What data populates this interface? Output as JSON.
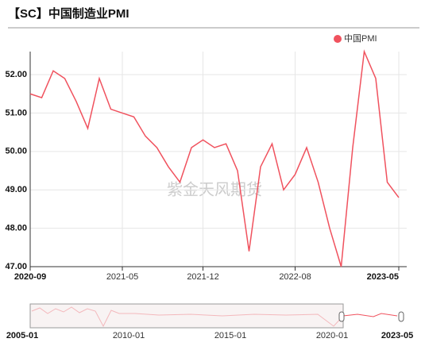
{
  "chart_data": {
    "type": "line",
    "title": "【SC】中国制造业PMI",
    "watermark": "紫金天风期货",
    "categories": [
      "2020-09",
      null,
      null,
      null,
      null,
      null,
      null,
      null,
      "2021-05",
      null,
      null,
      null,
      null,
      null,
      null,
      "2021-12",
      null,
      null,
      null,
      null,
      null,
      null,
      null,
      "2022-08",
      null,
      null,
      null,
      null,
      null,
      null,
      null,
      null,
      "2023-05"
    ],
    "series": [
      {
        "name": "中国PMI",
        "color": "#f0525e",
        "values": [
          51.5,
          51.4,
          52.1,
          51.9,
          51.3,
          50.6,
          51.9,
          51.1,
          51.0,
          50.9,
          50.4,
          50.1,
          49.6,
          49.2,
          50.1,
          50.3,
          50.1,
          50.2,
          49.5,
          47.4,
          49.6,
          50.2,
          49.0,
          49.4,
          50.1,
          49.2,
          48.0,
          47.0,
          50.1,
          52.6,
          51.9,
          49.2,
          48.8
        ]
      }
    ],
    "ylim": [
      47,
      52.6
    ],
    "yticks": [
      {
        "value": 47,
        "label": "47.00"
      },
      {
        "value": 48,
        "label": "48.00"
      },
      {
        "value": 49,
        "label": "49.00"
      },
      {
        "value": 50,
        "label": "50.00"
      },
      {
        "value": 51,
        "label": "51.00"
      },
      {
        "value": 52,
        "label": "52.00"
      }
    ],
    "grid": true,
    "legend": "top-right",
    "zoom_labels": [
      "2005-01",
      "2010-01",
      "2015-01",
      "2020-01",
      "2023-05"
    ]
  }
}
